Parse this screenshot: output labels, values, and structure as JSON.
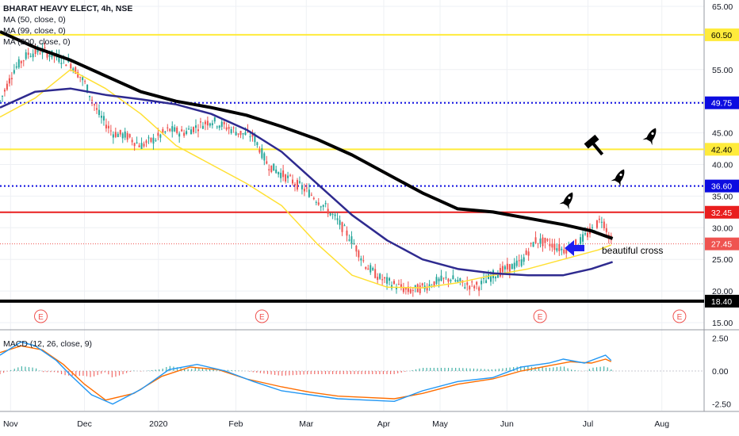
{
  "chart_data": {
    "type": "candlestick",
    "symbol_line": "BHARAT HEAVY ELECT, 4h, NSE",
    "indicators": [
      "MA (50, close, 0)",
      "MA (99, close, 0)",
      "MA (200, close, 0)"
    ],
    "macd_label": "MACD (12, 26, close, 9)",
    "price_axis": {
      "ticks": [
        "65.00",
        "55.00",
        "50.00",
        "45.00",
        "40.00",
        "35.00",
        "30.00",
        "25.00",
        "20.00",
        "15.00"
      ],
      "range": [
        14,
        66
      ]
    },
    "macd_axis": {
      "ticks": [
        "2.50",
        "0.00",
        "-2.50"
      ],
      "range": [
        -3.0,
        3.0
      ]
    },
    "x_axis": {
      "labels": [
        "Nov",
        "Dec",
        "2020",
        "Feb",
        "Mar",
        "Apr",
        "May",
        "Jun",
        "Jul",
        "Aug"
      ]
    },
    "horizontal_levels": [
      {
        "value": 60.5,
        "label": "60.50",
        "color": "#ffeb3b",
        "style": "solid"
      },
      {
        "value": 49.75,
        "label": "49.75",
        "color": "#0c0ce0",
        "style": "dotted"
      },
      {
        "value": 42.4,
        "label": "42.40",
        "color": "#ffeb3b",
        "style": "solid"
      },
      {
        "value": 36.6,
        "label": "36.60",
        "color": "#0c0ce0",
        "style": "dotted"
      },
      {
        "value": 32.45,
        "label": "32.45",
        "color": "#e91e1e",
        "style": "solid"
      },
      {
        "value": 27.45,
        "label": "27.45",
        "color": "#ef5350",
        "style": "dotted"
      },
      {
        "value": 18.4,
        "label": "18.40",
        "color": "#000000",
        "style": "solid"
      }
    ],
    "moving_averages": [
      {
        "name": "MA 50",
        "color": "#ffe033",
        "points": [
          [
            0,
            47.5
          ],
          [
            0.05,
            50.5
          ],
          [
            0.1,
            55
          ],
          [
            0.15,
            52
          ],
          [
            0.2,
            48
          ],
          [
            0.25,
            43
          ],
          [
            0.3,
            40
          ],
          [
            0.35,
            37
          ],
          [
            0.4,
            33.5
          ],
          [
            0.45,
            27.5
          ],
          [
            0.5,
            22.5
          ],
          [
            0.55,
            20.6
          ],
          [
            0.6,
            20.5
          ],
          [
            0.65,
            21.3
          ],
          [
            0.7,
            22.5
          ],
          [
            0.75,
            23.5
          ],
          [
            0.8,
            25
          ],
          [
            0.85,
            26.5
          ],
          [
            0.868,
            27.3
          ]
        ]
      },
      {
        "name": "MA 99",
        "color": "#2e2a8f",
        "points": [
          [
            0,
            49
          ],
          [
            0.05,
            51.5
          ],
          [
            0.1,
            52
          ],
          [
            0.15,
            51
          ],
          [
            0.2,
            50.3
          ],
          [
            0.25,
            49.5
          ],
          [
            0.3,
            48
          ],
          [
            0.35,
            45.5
          ],
          [
            0.4,
            42
          ],
          [
            0.45,
            37
          ],
          [
            0.5,
            32
          ],
          [
            0.55,
            28
          ],
          [
            0.6,
            25
          ],
          [
            0.65,
            23.5
          ],
          [
            0.7,
            22.8
          ],
          [
            0.75,
            22.5
          ],
          [
            0.8,
            22.5
          ],
          [
            0.84,
            23.5
          ],
          [
            0.87,
            24.6
          ]
        ]
      },
      {
        "name": "MA 200",
        "color": "#000000",
        "points": [
          [
            0,
            61
          ],
          [
            0.05,
            58.5
          ],
          [
            0.1,
            56.5
          ],
          [
            0.15,
            54
          ],
          [
            0.2,
            51.5
          ],
          [
            0.25,
            50
          ],
          [
            0.3,
            49
          ],
          [
            0.35,
            47.8
          ],
          [
            0.4,
            46
          ],
          [
            0.45,
            44
          ],
          [
            0.5,
            41.5
          ],
          [
            0.55,
            38.5
          ],
          [
            0.6,
            35.5
          ],
          [
            0.65,
            33
          ],
          [
            0.7,
            32.5
          ],
          [
            0.75,
            31.5
          ],
          [
            0.8,
            30.5
          ],
          [
            0.84,
            29.5
          ],
          [
            0.87,
            28.3
          ]
        ]
      }
    ],
    "price_path": [
      [
        0,
        50
      ],
      [
        0.02,
        55
      ],
      [
        0.04,
        57.5
      ],
      [
        0.06,
        58
      ],
      [
        0.08,
        57
      ],
      [
        0.1,
        56
      ],
      [
        0.12,
        53
      ],
      [
        0.14,
        48
      ],
      [
        0.16,
        45
      ],
      [
        0.18,
        44.5
      ],
      [
        0.2,
        43
      ],
      [
        0.22,
        44
      ],
      [
        0.24,
        45.5
      ],
      [
        0.26,
        45
      ],
      [
        0.28,
        46
      ],
      [
        0.3,
        47
      ],
      [
        0.32,
        46
      ],
      [
        0.34,
        45
      ],
      [
        0.36,
        44.5
      ],
      [
        0.38,
        40
      ],
      [
        0.4,
        38.5
      ],
      [
        0.42,
        37
      ],
      [
        0.44,
        35.5
      ],
      [
        0.46,
        33.5
      ],
      [
        0.48,
        31
      ],
      [
        0.5,
        28
      ],
      [
        0.52,
        24
      ],
      [
        0.54,
        22
      ],
      [
        0.56,
        21
      ],
      [
        0.58,
        20
      ],
      [
        0.6,
        20.5
      ],
      [
        0.62,
        21.5
      ],
      [
        0.64,
        22
      ],
      [
        0.66,
        21
      ],
      [
        0.68,
        20.8
      ],
      [
        0.7,
        22.5
      ],
      [
        0.72,
        23.5
      ],
      [
        0.74,
        24.5
      ],
      [
        0.76,
        28
      ],
      [
        0.78,
        27.5
      ],
      [
        0.8,
        26.5
      ],
      [
        0.82,
        27.5
      ],
      [
        0.84,
        29.5
      ],
      [
        0.855,
        31.5
      ],
      [
        0.868,
        28
      ]
    ],
    "macd": {
      "macd_line": [
        [
          0,
          1.2
        ],
        [
          0.03,
          2.2
        ],
        [
          0.05,
          1.9
        ],
        [
          0.08,
          0.8
        ],
        [
          0.1,
          -0.3
        ],
        [
          0.13,
          -1.8
        ],
        [
          0.16,
          -2.5
        ],
        [
          0.2,
          -1.4
        ],
        [
          0.24,
          0.1
        ],
        [
          0.28,
          0.5
        ],
        [
          0.32,
          0.0
        ],
        [
          0.36,
          -0.8
        ],
        [
          0.4,
          -1.5
        ],
        [
          0.44,
          -1.8
        ],
        [
          0.48,
          -2.1
        ],
        [
          0.52,
          -2.2
        ],
        [
          0.56,
          -2.3
        ],
        [
          0.6,
          -1.5
        ],
        [
          0.65,
          -0.8
        ],
        [
          0.7,
          -0.5
        ],
        [
          0.74,
          0.3
        ],
        [
          0.78,
          0.6
        ],
        [
          0.8,
          0.9
        ],
        [
          0.83,
          0.6
        ],
        [
          0.86,
          1.2
        ],
        [
          0.868,
          0.8
        ]
      ],
      "signal_line": [
        [
          0,
          1.4
        ],
        [
          0.03,
          1.9
        ],
        [
          0.06,
          1.6
        ],
        [
          0.09,
          0.5
        ],
        [
          0.12,
          -1.0
        ],
        [
          0.15,
          -2.2
        ],
        [
          0.19,
          -1.7
        ],
        [
          0.23,
          -0.4
        ],
        [
          0.27,
          0.3
        ],
        [
          0.31,
          0.1
        ],
        [
          0.35,
          -0.6
        ],
        [
          0.4,
          -1.2
        ],
        [
          0.44,
          -1.6
        ],
        [
          0.48,
          -1.9
        ],
        [
          0.52,
          -2.0
        ],
        [
          0.56,
          -2.1
        ],
        [
          0.6,
          -1.7
        ],
        [
          0.65,
          -1.0
        ],
        [
          0.7,
          -0.6
        ],
        [
          0.74,
          0.0
        ],
        [
          0.78,
          0.4
        ],
        [
          0.81,
          0.7
        ],
        [
          0.84,
          0.6
        ],
        [
          0.86,
          0.9
        ],
        [
          0.868,
          0.7
        ]
      ],
      "macd_color": "#2196f3",
      "signal_color": "#ff6d00"
    },
    "annotations": [
      {
        "text": "beautiful cross"
      }
    ],
    "earnings_markers": [
      "E",
      "E",
      "E",
      "E"
    ],
    "icons": [
      "rocket-icon",
      "hammer-icon",
      "rocket-icon",
      "rocket-icon",
      "arrow-left-icon"
    ]
  }
}
